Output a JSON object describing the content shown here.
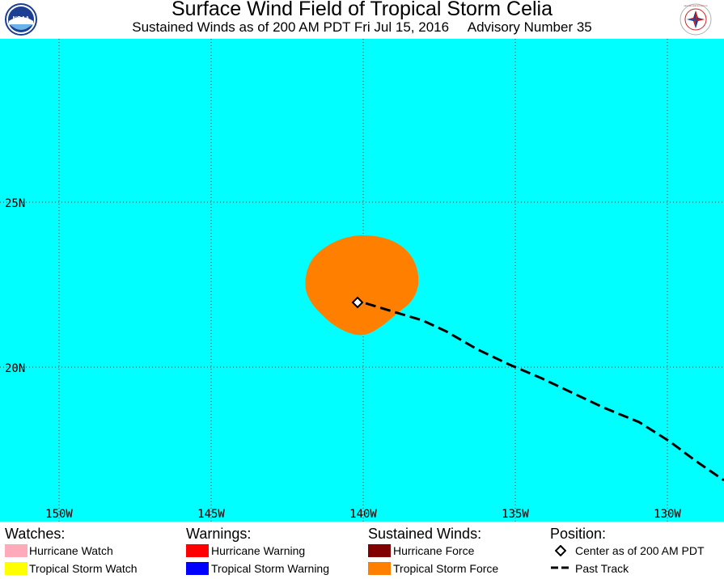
{
  "header": {
    "title": "Surface Wind Field of Tropical Storm Celia",
    "subtitle": "Sustained Winds as of 200 AM PDT Fri Jul 15, 2016     Advisory Number 35",
    "left_logo_text": "NOAA",
    "right_logo_text": "NATIONAL WEATHER SERVICE"
  },
  "map": {
    "ocean_color": "#00ffff",
    "grid_color": "#3a4a4a",
    "lon_labels": [
      "150W",
      "145W",
      "140W",
      "135W",
      "130W"
    ],
    "lat_labels": [
      "25N",
      "20N"
    ],
    "storm_center": {
      "lon": -140.0,
      "lat": 22.0
    },
    "ts_force_color": "#ff8000",
    "past_track_color": "#000000"
  },
  "legend": {
    "watches": {
      "heading": "Watches:",
      "items": [
        {
          "label": "Hurricane Watch",
          "color": "#ffaabb"
        },
        {
          "label": "Tropical Storm Watch",
          "color": "#ffff00"
        }
      ]
    },
    "warnings": {
      "heading": "Warnings:",
      "items": [
        {
          "label": "Hurricane Warning",
          "color": "#ff0000"
        },
        {
          "label": "Tropical Storm Warning",
          "color": "#0000ff"
        }
      ]
    },
    "winds": {
      "heading": "Sustained Winds:",
      "items": [
        {
          "label": "Hurricane Force",
          "color": "#800000"
        },
        {
          "label": "Tropical Storm Force",
          "color": "#ff8000"
        }
      ]
    },
    "position": {
      "heading": "Position:",
      "items": [
        {
          "label": "Center as of 200 AM PDT",
          "icon": "diamond-icon"
        },
        {
          "label": "Past Track",
          "icon": "dashed-line-icon"
        }
      ]
    }
  }
}
